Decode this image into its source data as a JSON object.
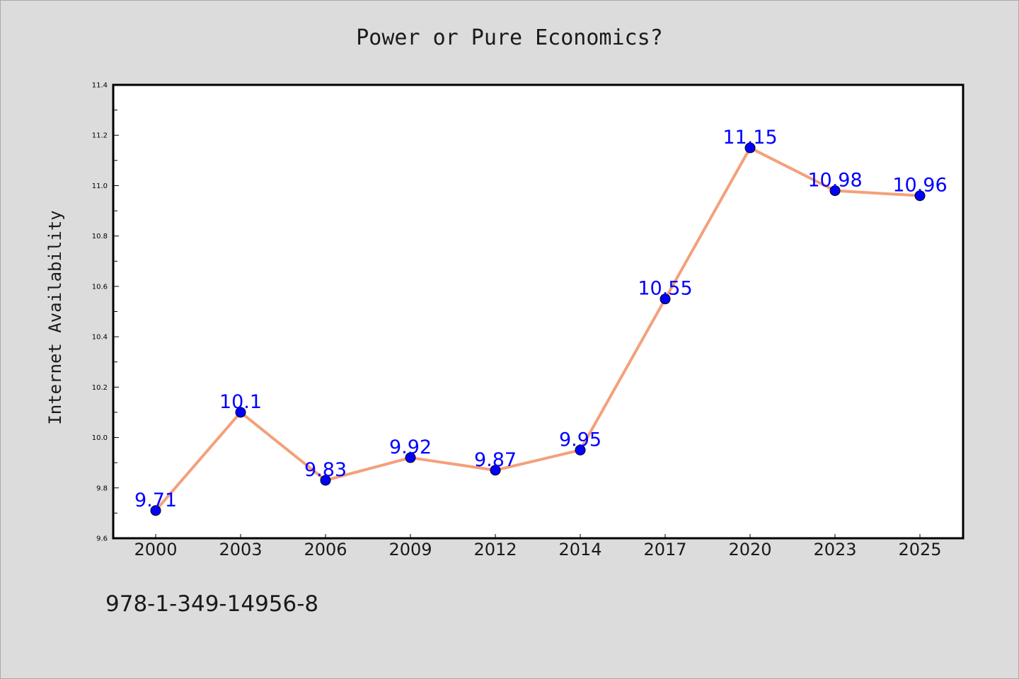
{
  "chart_data": {
    "type": "line",
    "title": "Power or Pure Economics?",
    "xlabel": "",
    "ylabel": "Internet Availability",
    "categories": [
      "2000",
      "2003",
      "2006",
      "2009",
      "2012",
      "2014",
      "2017",
      "2020",
      "2023",
      "2025"
    ],
    "series": [
      {
        "values": [
          9.71,
          10.1,
          9.83,
          9.92,
          9.87,
          9.95,
          10.55,
          11.15,
          10.98,
          10.96
        ],
        "data_labels": [
          "9.71",
          "10.1",
          "9.83",
          "9.92",
          "9.87",
          "9.95",
          "10.55",
          "11.15",
          "10.98",
          "10.96"
        ],
        "line_color": "#f4a07a",
        "marker_color": "#0000ff"
      }
    ],
    "ylim": [
      9.6,
      11.4
    ],
    "yticks": [
      "9.6",
      "9.8",
      "10.0",
      "10.2",
      "10.4",
      "10.6",
      "10.8",
      "11.0",
      "11.2",
      "11.4"
    ],
    "grid": false,
    "legend": "none",
    "colors": {
      "background": "#dcdcdc",
      "plot_background": "#ffffff",
      "label_color": "#0000ff"
    }
  },
  "caption": "978-1-349-14956-8"
}
